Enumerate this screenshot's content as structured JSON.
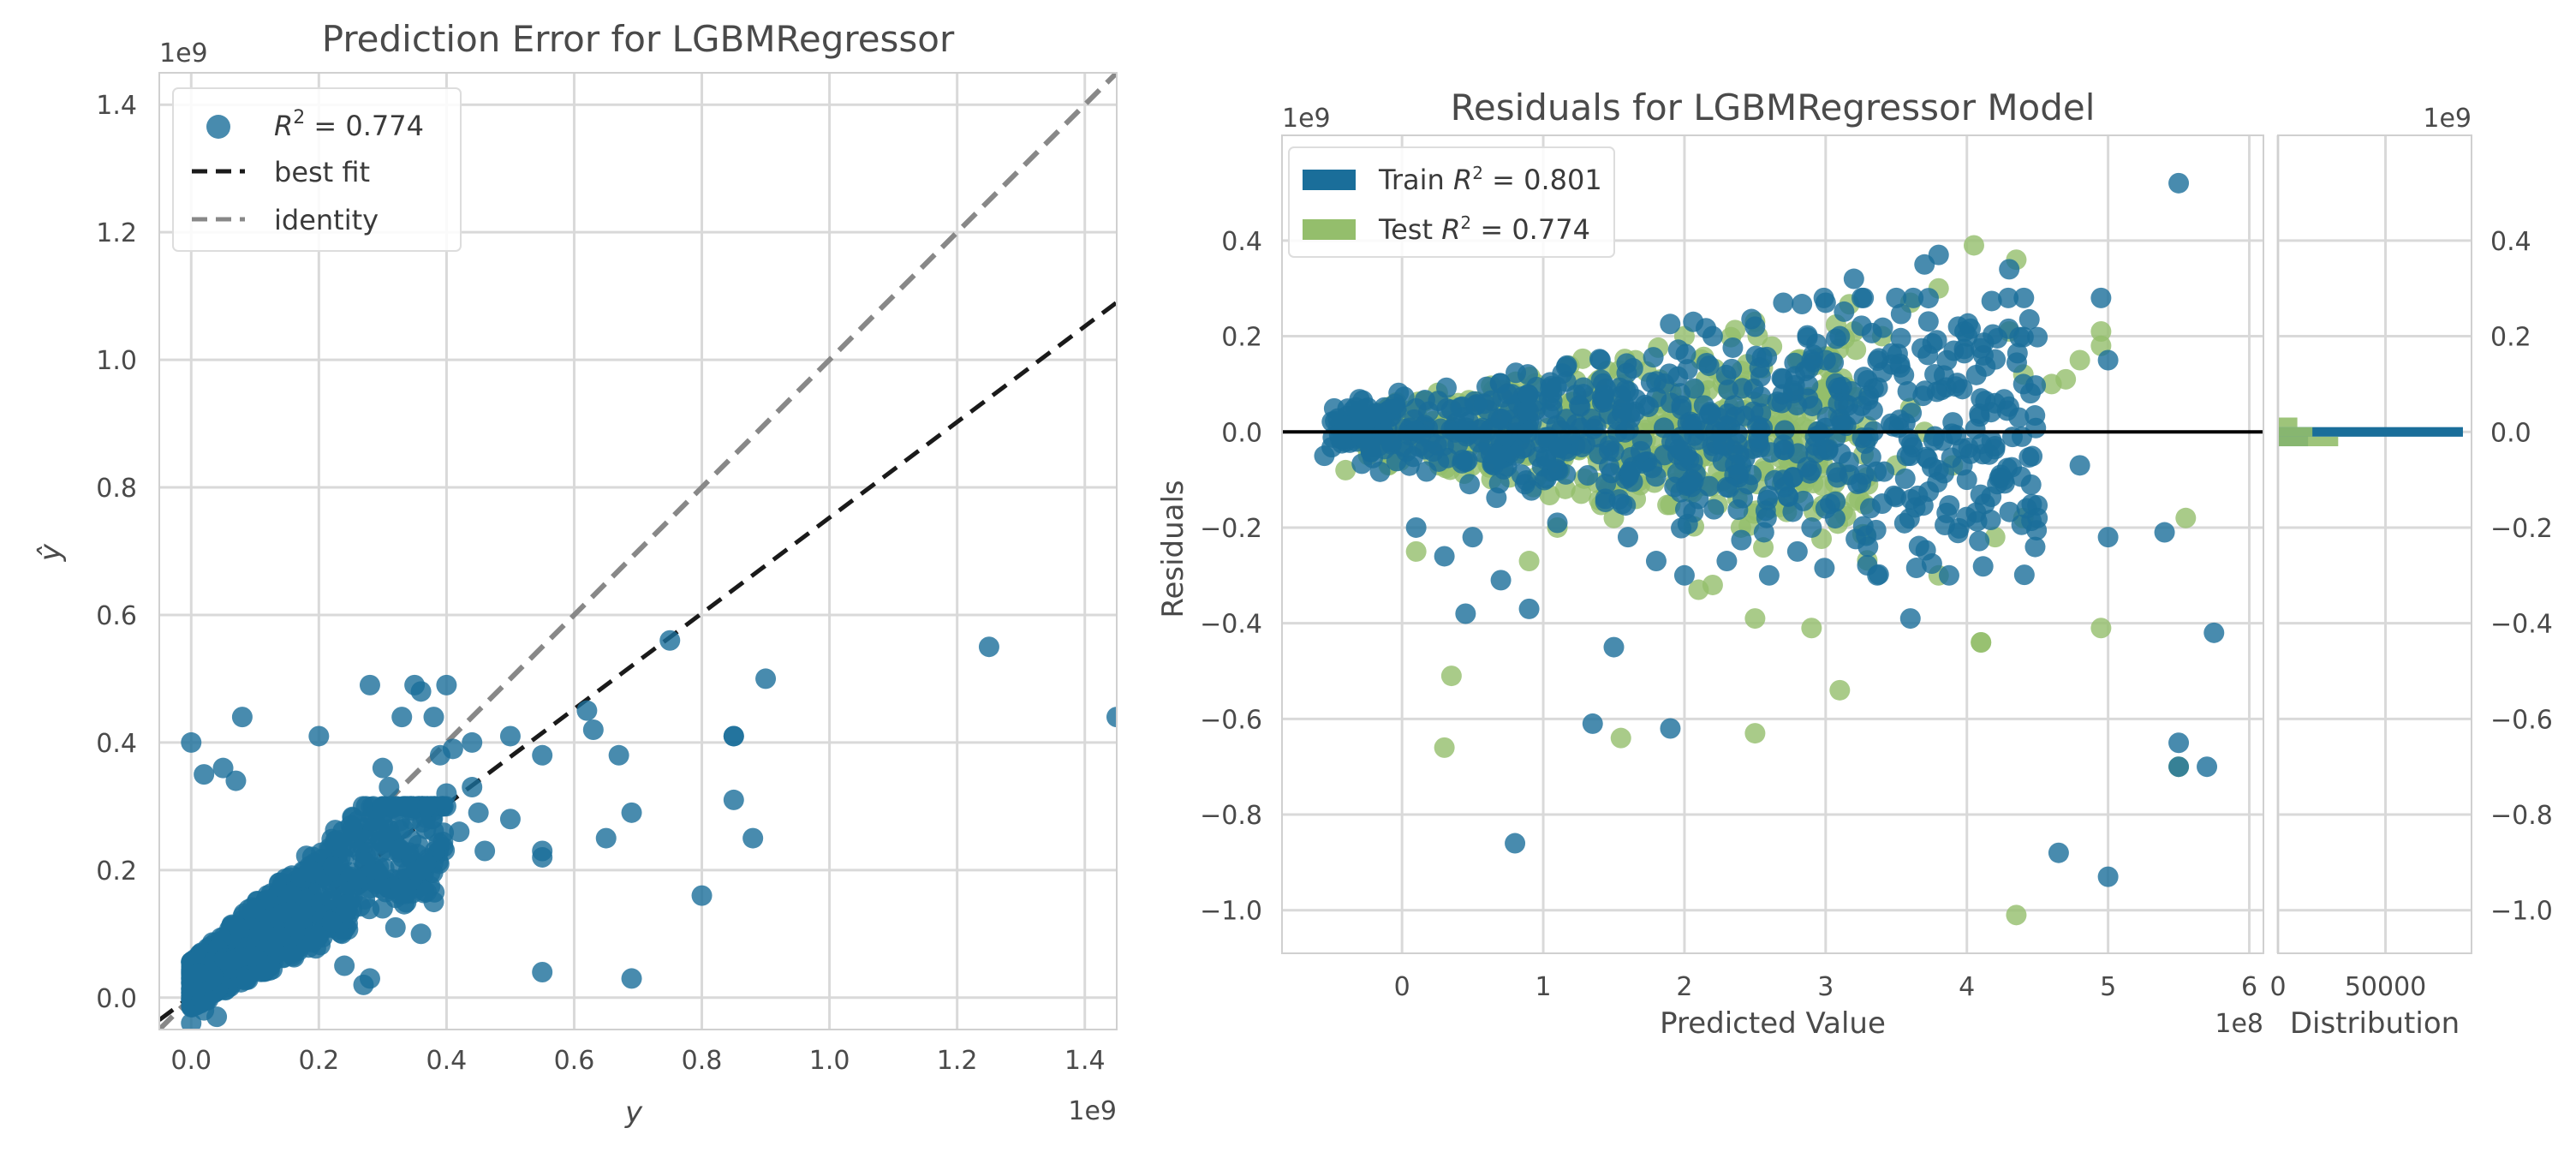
{
  "colors": {
    "train": "#1a6e9a",
    "test": "#94be6c",
    "best_fit": "#1a1a1a",
    "identity": "#888888",
    "grid": "#d9d9d9",
    "spine": "#d0d0d0",
    "zero_line": "#000000"
  },
  "chart_data": [
    {
      "type": "scatter",
      "title": "Prediction Error for LGBMRegressor",
      "xlabel": "y",
      "ylabel": "ŷ",
      "x_offset_label": "1e9",
      "y_offset_label": "1e9",
      "xlim": [
        -0.05,
        1.45
      ],
      "ylim": [
        -0.05,
        1.45
      ],
      "xticks": [
        0.0,
        0.2,
        0.4,
        0.6,
        0.8,
        1.0,
        1.2,
        1.4
      ],
      "xtick_labels": [
        "0.0",
        "0.2",
        "0.4",
        "0.6",
        "0.8",
        "1.0",
        "1.2",
        "1.4"
      ],
      "yticks": [
        0.0,
        0.2,
        0.4,
        0.6,
        0.8,
        1.0,
        1.2,
        1.4
      ],
      "ytick_labels": [
        "0.0",
        "0.2",
        "0.4",
        "0.6",
        "0.8",
        "1.0",
        "1.2",
        "1.4"
      ],
      "grid": true,
      "legend_position": "top-left",
      "legend": [
        {
          "label_prefix": "R",
          "label_sup": "2",
          "label_suffix": " = 0.774",
          "kind": "marker",
          "color": "train"
        },
        {
          "label": "best fit",
          "kind": "dashed",
          "color": "best_fit"
        },
        {
          "label": "identity",
          "kind": "dashed",
          "color": "identity"
        }
      ],
      "lines": {
        "best_fit": {
          "x": [
            -0.05,
            1.45
          ],
          "y": [
            -0.035,
            1.09
          ]
        },
        "identity": {
          "x": [
            -0.05,
            1.45
          ],
          "y": [
            -0.05,
            1.45
          ]
        }
      },
      "series": [
        {
          "name": "R² = 0.774",
          "cluster": {
            "n": 900,
            "x_max": 0.4,
            "y_max": 0.3,
            "seed": 7
          },
          "points": [
            [
              0.0,
              0.4
            ],
            [
              0.08,
              0.44
            ],
            [
              0.02,
              0.35
            ],
            [
              0.05,
              0.36
            ],
            [
              0.07,
              0.34
            ],
            [
              0.2,
              0.41
            ],
            [
              0.28,
              0.49
            ],
            [
              0.33,
              0.44
            ],
            [
              0.35,
              0.49
            ],
            [
              0.36,
              0.48
            ],
            [
              0.4,
              0.49
            ],
            [
              0.38,
              0.44
            ],
            [
              0.41,
              0.39
            ],
            [
              0.39,
              0.38
            ],
            [
              0.44,
              0.4
            ],
            [
              0.44,
              0.33
            ],
            [
              0.5,
              0.41
            ],
            [
              0.55,
              0.38
            ],
            [
              0.55,
              0.22
            ],
            [
              0.55,
              0.23
            ],
            [
              0.62,
              0.45
            ],
            [
              0.63,
              0.42
            ],
            [
              0.65,
              0.25
            ],
            [
              0.67,
              0.38
            ],
            [
              0.69,
              0.29
            ],
            [
              0.75,
              0.56
            ],
            [
              0.8,
              0.16
            ],
            [
              0.85,
              0.41
            ],
            [
              0.85,
              0.41
            ],
            [
              0.85,
              0.31
            ],
            [
              0.88,
              0.25
            ],
            [
              0.9,
              0.5
            ],
            [
              1.25,
              0.55
            ],
            [
              1.45,
              0.44
            ],
            [
              0.55,
              0.04
            ],
            [
              0.69,
              0.03
            ],
            [
              0.45,
              0.29
            ],
            [
              0.5,
              0.28
            ],
            [
              0.42,
              0.26
            ],
            [
              0.46,
              0.23
            ],
            [
              0.3,
              0.36
            ],
            [
              0.31,
              0.33
            ],
            [
              0.25,
              0.27
            ],
            [
              0.28,
              0.03
            ],
            [
              0.27,
              0.02
            ],
            [
              0.24,
              0.05
            ],
            [
              0.36,
              0.2
            ],
            [
              0.38,
              0.15
            ],
            [
              0.36,
              0.1
            ],
            [
              0.32,
              0.11
            ],
            [
              0.3,
              0.14
            ],
            [
              0.4,
              0.32
            ],
            [
              0.37,
              0.3
            ],
            [
              0.04,
              -0.03
            ],
            [
              0.0,
              -0.04
            ],
            [
              0.02,
              -0.02
            ]
          ]
        }
      ]
    },
    {
      "type": "scatter",
      "title": "Residuals for LGBMRegressor Model",
      "xlabel": "Predicted Value",
      "ylabel": "Residuals",
      "x_offset_label": "1e8",
      "y_offset_label": "1e9",
      "xlim": [
        -0.85,
        6.1
      ],
      "ylim": [
        -1.09,
        0.62
      ],
      "xticks": [
        0,
        1,
        2,
        3,
        4,
        5,
        6
      ],
      "xtick_labels": [
        "0",
        "1",
        "2",
        "3",
        "4",
        "5",
        "6"
      ],
      "yticks": [
        0.4,
        0.2,
        0.0,
        -0.2,
        -0.4,
        -0.6,
        -0.8,
        -1.0
      ],
      "ytick_labels": [
        "0.4",
        "0.2",
        "0.0",
        "−0.2",
        "−0.4",
        "−0.6",
        "−0.8",
        "−1.0"
      ],
      "grid": true,
      "legend_position": "top-left",
      "legend": [
        {
          "label_prefix": "Train ",
          "label_italic": "R",
          "label_sup": "2",
          "label_suffix": " = 0.801",
          "kind": "patch",
          "color": "train"
        },
        {
          "label_prefix": "Test ",
          "label_italic": "R",
          "label_sup": "2",
          "label_suffix": " = 0.774",
          "kind": "patch",
          "color": "test"
        }
      ],
      "series": [
        {
          "name": "Train",
          "cluster": {
            "n": 700,
            "x_min": -0.5,
            "x_max": 4.5,
            "seed": 11
          },
          "points": [
            [
              -0.55,
              -0.05
            ],
            [
              5.5,
              0.52
            ],
            [
              3.8,
              0.37
            ],
            [
              3.7,
              0.35
            ],
            [
              3.2,
              0.32
            ],
            [
              3.0,
              0.27
            ],
            [
              4.95,
              0.28
            ],
            [
              5.0,
              -0.22
            ],
            [
              5.4,
              -0.21
            ],
            [
              5.5,
              -0.65
            ],
            [
              5.5,
              -0.7
            ],
            [
              5.7,
              -0.7
            ],
            [
              5.75,
              -0.42
            ],
            [
              4.65,
              -0.88
            ],
            [
              5.0,
              -0.93
            ],
            [
              0.8,
              -0.86
            ],
            [
              1.35,
              -0.61
            ],
            [
              1.9,
              -0.62
            ],
            [
              1.5,
              -0.45
            ],
            [
              0.45,
              -0.38
            ],
            [
              0.9,
              -0.37
            ],
            [
              3.6,
              -0.39
            ],
            [
              4.5,
              -0.18
            ],
            [
              4.8,
              -0.07
            ],
            [
              4.1,
              0.07
            ],
            [
              4.2,
              0.06
            ],
            [
              3.9,
              0.02
            ],
            [
              3.0,
              -0.16
            ],
            [
              3.3,
              -0.24
            ],
            [
              2.6,
              -0.3
            ],
            [
              2.3,
              -0.27
            ],
            [
              1.8,
              -0.27
            ],
            [
              2.0,
              -0.3
            ],
            [
              1.1,
              -0.19
            ],
            [
              0.7,
              -0.31
            ],
            [
              0.3,
              -0.26
            ],
            [
              4.3,
              0.34
            ],
            [
              3.5,
              0.28
            ],
            [
              3.1,
              0.2
            ],
            [
              3.0,
              0.15
            ],
            [
              2.7,
              0.27
            ],
            [
              2.5,
              0.22
            ],
            [
              2.2,
              0.2
            ],
            [
              4.4,
              0.1
            ],
            [
              5.0,
              0.15
            ],
            [
              3.4,
              -0.15
            ],
            [
              3.6,
              -0.05
            ],
            [
              3.8,
              -0.08
            ],
            [
              4.0,
              -0.1
            ],
            [
              4.2,
              -0.03
            ],
            [
              2.8,
              -0.25
            ],
            [
              2.9,
              -0.2
            ],
            [
              1.6,
              -0.22
            ],
            [
              0.5,
              -0.22
            ],
            [
              0.1,
              -0.2
            ]
          ]
        },
        {
          "name": "Test",
          "cluster": {
            "n": 500,
            "x_min": -0.3,
            "x_max": 3.3,
            "seed": 23
          },
          "points": [
            [
              4.05,
              0.39
            ],
            [
              4.35,
              0.36
            ],
            [
              3.6,
              0.27
            ],
            [
              3.8,
              0.3
            ],
            [
              4.3,
              0.21
            ],
            [
              4.95,
              0.21
            ],
            [
              4.95,
              0.18
            ],
            [
              4.8,
              0.15
            ],
            [
              3.3,
              -0.11
            ],
            [
              4.1,
              -0.44
            ],
            [
              4.1,
              -0.44
            ],
            [
              4.95,
              -0.41
            ],
            [
              5.55,
              -0.18
            ],
            [
              5.5,
              -0.7
            ],
            [
              4.35,
              -1.01
            ],
            [
              0.3,
              -0.66
            ],
            [
              0.35,
              -0.51
            ],
            [
              1.55,
              -0.64
            ],
            [
              2.5,
              -0.63
            ],
            [
              2.5,
              -0.39
            ],
            [
              2.9,
              -0.41
            ],
            [
              3.1,
              -0.54
            ],
            [
              2.2,
              -0.32
            ],
            [
              2.1,
              -0.33
            ],
            [
              3.8,
              -0.3
            ],
            [
              4.2,
              -0.22
            ],
            [
              4.4,
              -0.18
            ],
            [
              3.5,
              -0.07
            ],
            [
              3.9,
              -0.07
            ],
            [
              4.6,
              0.1
            ],
            [
              4.7,
              0.11
            ],
            [
              4.4,
              0.12
            ],
            [
              -0.4,
              -0.08
            ],
            [
              0.1,
              -0.25
            ],
            [
              0.9,
              -0.27
            ],
            [
              1.1,
              -0.2
            ],
            [
              1.5,
              -0.18
            ],
            [
              2.4,
              -0.2
            ],
            [
              2.0,
              0.2
            ],
            [
              2.5,
              0.23
            ],
            [
              3.2,
              0.21
            ],
            [
              3.4,
              0.2
            ],
            [
              2.8,
              0.15
            ],
            [
              3.6,
              0.05
            ],
            [
              3.7,
              0.0
            ]
          ]
        }
      ],
      "distribution": {
        "xlabel": "Distribution",
        "xticks": [
          0,
          50000
        ],
        "xtick_labels": [
          "0",
          "50000"
        ],
        "xlim": [
          0,
          90000
        ],
        "y_offset_label": "1e9",
        "yticks": [
          0.4,
          0.2,
          0.0,
          -0.2,
          -0.4,
          -0.6,
          -0.8,
          -1.0
        ],
        "ytick_labels": [
          "0.4",
          "0.2",
          "0.0",
          "−0.2",
          "−0.4",
          "−0.6",
          "−0.8",
          "−1.0"
        ],
        "bars": [
          {
            "series": "Train",
            "bin_center": 0.0,
            "bin_width": 0.02,
            "count": 86000
          },
          {
            "series": "Train",
            "bin_center": -0.02,
            "bin_width": 0.02,
            "count": 14000
          },
          {
            "series": "Test",
            "bin_center": 0.0,
            "bin_width": 0.02,
            "count": 16000
          },
          {
            "series": "Test",
            "bin_center": -0.02,
            "bin_width": 0.02,
            "count": 28000
          },
          {
            "series": "Test",
            "bin_center": 0.02,
            "bin_width": 0.02,
            "count": 9000
          }
        ]
      }
    }
  ]
}
